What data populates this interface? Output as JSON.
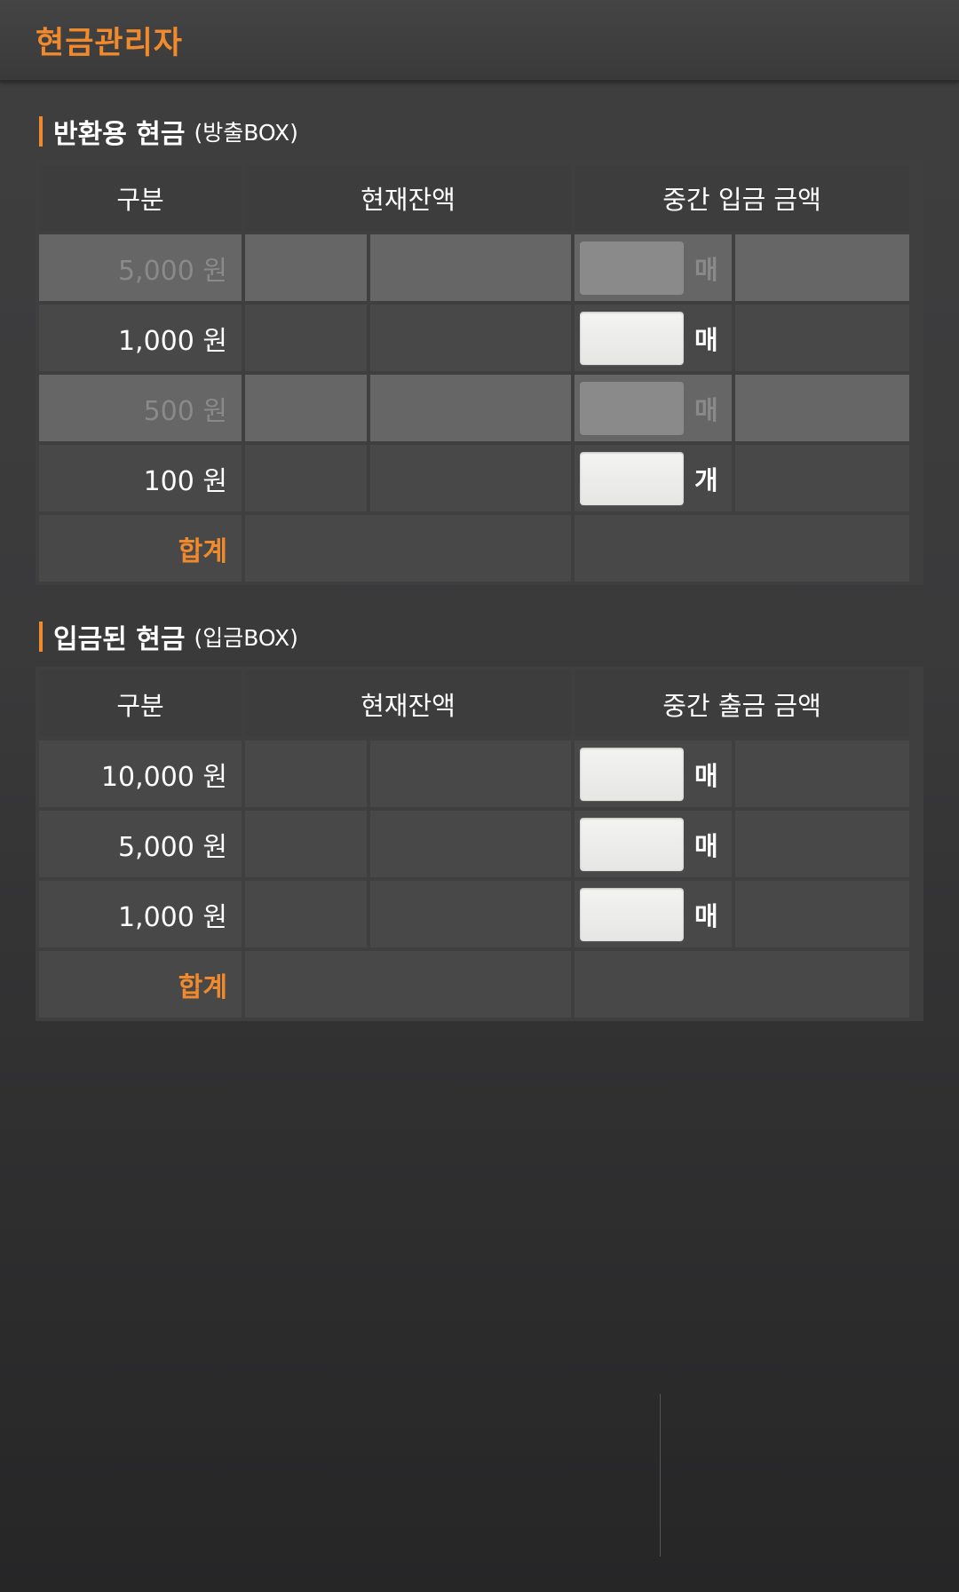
{
  "app": {
    "title": "현금관리자"
  },
  "return_section": {
    "title": "반환용 현금",
    "subtitle": "(방출BOX)",
    "headers": {
      "category": "구분",
      "balance": "현재잔액",
      "mid_amount": "중간 입금 금액"
    },
    "rows": [
      {
        "label": "5,000 원",
        "unit": "매",
        "value": "",
        "enabled": false
      },
      {
        "label": "1,000 원",
        "unit": "매",
        "value": "",
        "enabled": true
      },
      {
        "label": "500 원",
        "unit": "매",
        "value": "",
        "enabled": false
      },
      {
        "label": "100 원",
        "unit": "개",
        "value": "",
        "enabled": true
      }
    ],
    "total_label": "합계"
  },
  "deposit_section": {
    "title": "입금된 현금",
    "subtitle": "(입금BOX)",
    "headers": {
      "category": "구분",
      "balance": "현재잔액",
      "mid_amount": "중간 출금 금액"
    },
    "rows": [
      {
        "label": "10,000 원",
        "unit": "매",
        "value": "",
        "enabled": true
      },
      {
        "label": "5,000 원",
        "unit": "매",
        "value": "",
        "enabled": true
      },
      {
        "label": "1,000 원",
        "unit": "매",
        "value": "",
        "enabled": true
      }
    ],
    "total_label": "합계"
  },
  "colors": {
    "accent": "#f08a2c",
    "background": "#3a3a3b",
    "cell": "#484849",
    "disabled_cell": "#666667",
    "input": "#ebebe9"
  }
}
